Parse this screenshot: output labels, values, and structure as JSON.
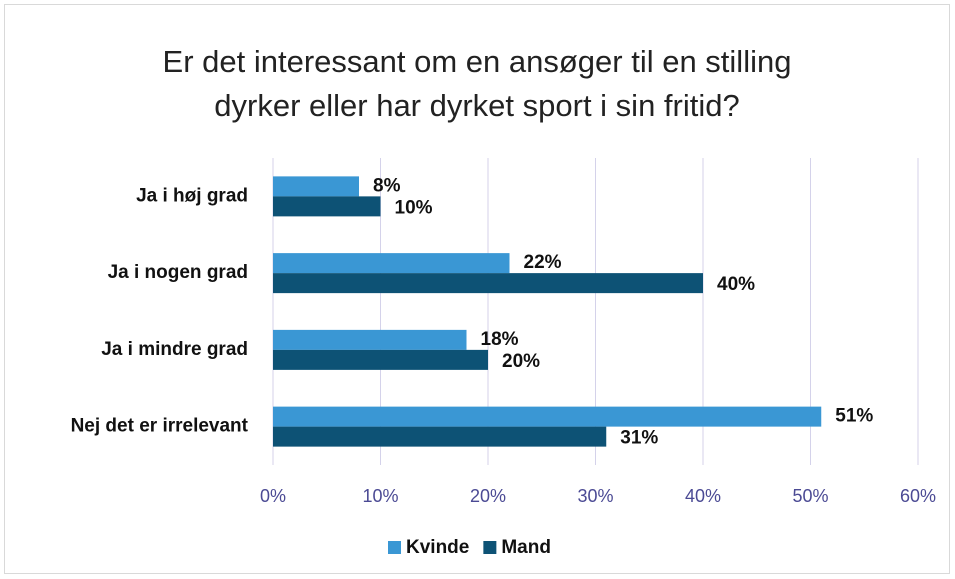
{
  "chart_data": {
    "type": "bar",
    "orientation": "horizontal",
    "title": "Er det interessant om en ansøger til en stilling dyrker eller har dyrket sport i sin fritid?",
    "categories": [
      "Ja i høj grad",
      "Ja i nogen grad",
      "Ja i mindre grad",
      "Nej det er irrelevant"
    ],
    "series": [
      {
        "name": "Kvinde",
        "color": "#3a97d4",
        "values": [
          8,
          22,
          18,
          51
        ],
        "value_labels": [
          "8%",
          "22%",
          "18%",
          "51%"
        ]
      },
      {
        "name": "Mand",
        "color": "#0d5275",
        "values": [
          10,
          40,
          20,
          31
        ],
        "value_labels": [
          "10%",
          "40%",
          "20%",
          "31%"
        ]
      }
    ],
    "xlim": [
      0,
      60
    ],
    "xticks": [
      {
        "value": 0,
        "label": "0%"
      },
      {
        "value": 10,
        "label": "10%"
      },
      {
        "value": 20,
        "label": "20%"
      },
      {
        "value": 30,
        "label": "30%"
      },
      {
        "value": 40,
        "label": "40%"
      },
      {
        "value": 50,
        "label": "50%"
      },
      {
        "value": 60,
        "label": "60%"
      }
    ],
    "grid": true,
    "legend": "bottom"
  }
}
